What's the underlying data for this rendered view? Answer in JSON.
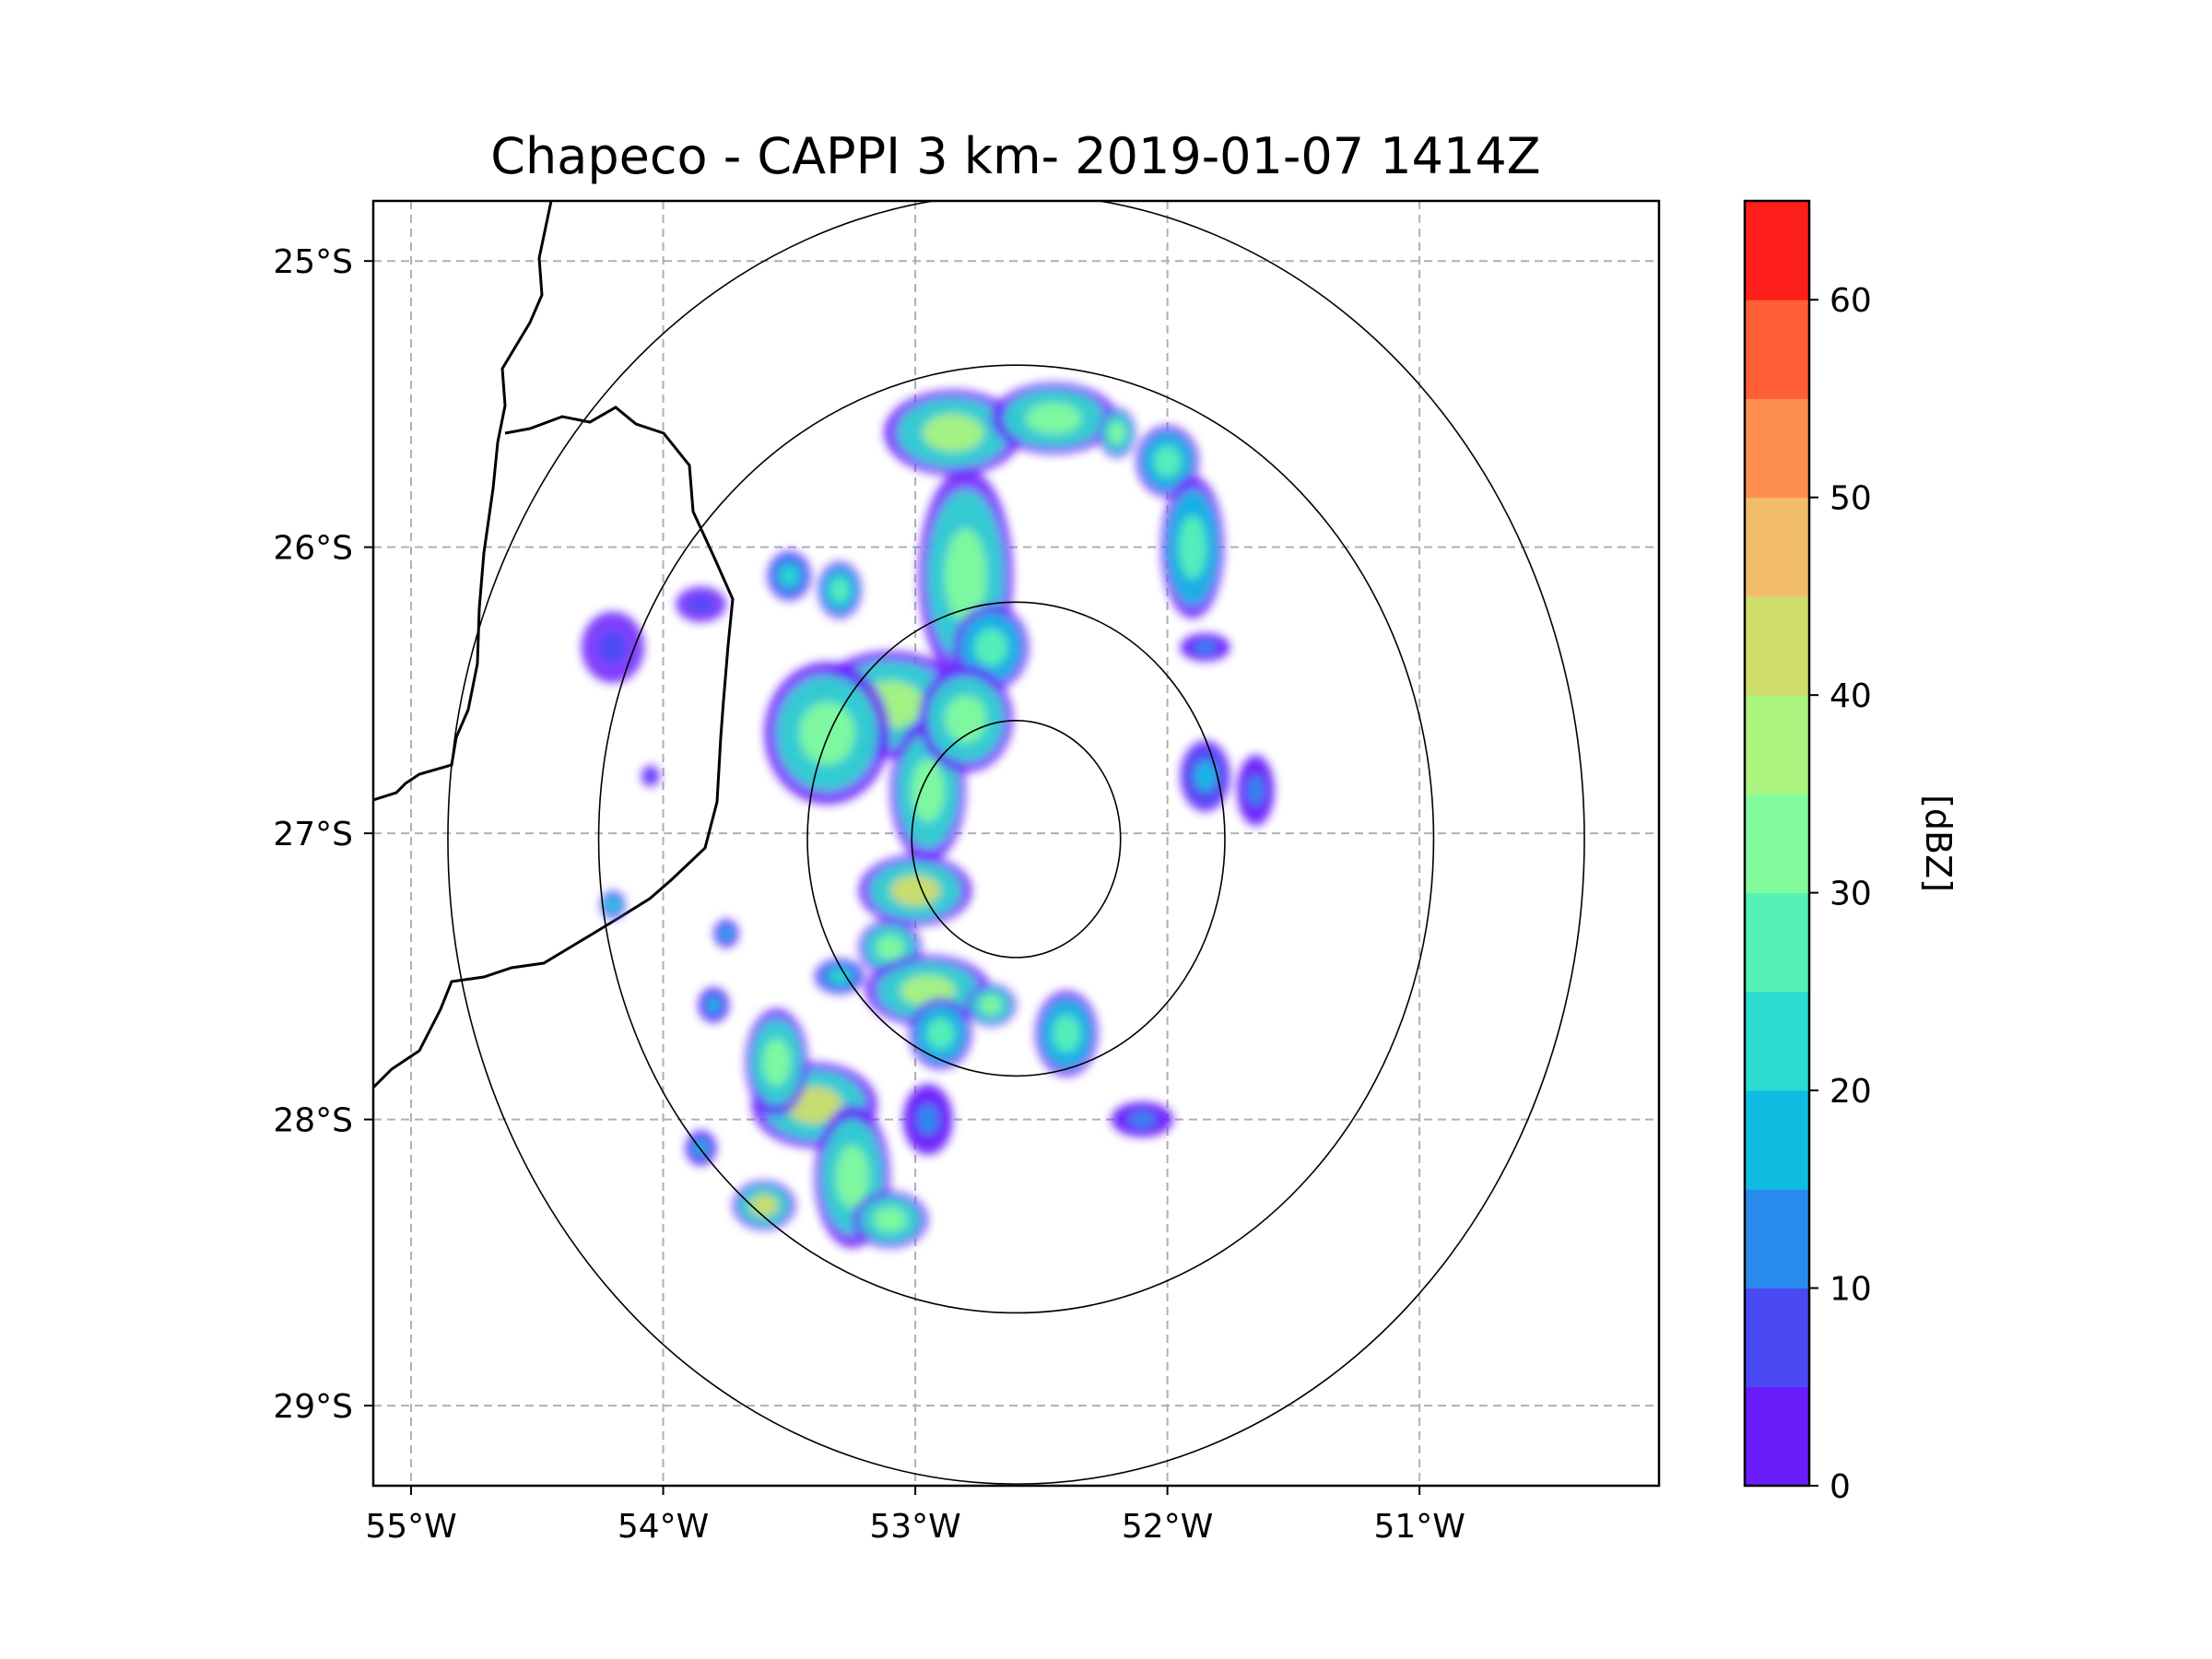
{
  "chart_data": {
    "type": "heatmap",
    "title": "Chapeco - CAPPI 3 km- 2019-01-07 1414Z",
    "xlim": [
      -55.15,
      -50.05
    ],
    "ylim": [
      -29.28,
      -24.79
    ],
    "x_ticks": [
      -55,
      -54,
      -53,
      -52,
      -51
    ],
    "x_tick_labels": [
      "55°W",
      "54°W",
      "53°W",
      "52°W",
      "51°W"
    ],
    "y_ticks": [
      -25,
      -26,
      -27,
      -28,
      -29
    ],
    "y_tick_labels": [
      "25°S",
      "26°S",
      "27°S",
      "28°S",
      "29°S"
    ],
    "grid": true,
    "radar_center": {
      "lon": -52.6,
      "lat": -27.02
    },
    "range_rings_deg": [
      0.45,
      0.9,
      1.8,
      2.45
    ],
    "colorbar": {
      "label": "[dBZ]",
      "min": 0,
      "max": 65,
      "ticks": [
        0,
        10,
        20,
        30,
        40,
        50,
        60
      ],
      "tick_labels": [
        "0",
        "10",
        "20",
        "30",
        "40",
        "50",
        "60"
      ],
      "levels": [
        0,
        5,
        10,
        15,
        20,
        25,
        30,
        35,
        40,
        45,
        50,
        55,
        60,
        65
      ],
      "colors": [
        "#6a1cfb",
        "#4a4af4",
        "#2a8bee",
        "#0fbde3",
        "#2cdbcf",
        "#54f2b7",
        "#82fb9d",
        "#aaf47f",
        "#cfde6a",
        "#f1bd6a",
        "#ff8f50",
        "#ff5e36",
        "#ff1f1a"
      ]
    },
    "echo_cells": [
      {
        "lon": -52.85,
        "lat": -25.6,
        "rx": 0.22,
        "ry": 0.12,
        "dbz": 35
      },
      {
        "lon": -52.45,
        "lat": -25.55,
        "rx": 0.2,
        "ry": 0.1,
        "dbz": 30
      },
      {
        "lon": -52.2,
        "lat": -25.6,
        "rx": 0.06,
        "ry": 0.07,
        "dbz": 30
      },
      {
        "lon": -52.0,
        "lat": -25.7,
        "rx": 0.1,
        "ry": 0.1,
        "dbz": 28
      },
      {
        "lon": -51.9,
        "lat": -26.0,
        "rx": 0.1,
        "ry": 0.2,
        "dbz": 25
      },
      {
        "lon": -52.8,
        "lat": -26.1,
        "rx": 0.15,
        "ry": 0.3,
        "dbz": 30
      },
      {
        "lon": -52.7,
        "lat": -26.35,
        "rx": 0.12,
        "ry": 0.12,
        "dbz": 25
      },
      {
        "lon": -53.1,
        "lat": -26.55,
        "rx": 0.25,
        "ry": 0.15,
        "dbz": 35
      },
      {
        "lon": -53.35,
        "lat": -26.65,
        "rx": 0.2,
        "ry": 0.2,
        "dbz": 33
      },
      {
        "lon": -52.95,
        "lat": -26.85,
        "rx": 0.12,
        "ry": 0.2,
        "dbz": 30
      },
      {
        "lon": -52.8,
        "lat": -26.6,
        "rx": 0.15,
        "ry": 0.15,
        "dbz": 30
      },
      {
        "lon": -53.3,
        "lat": -26.15,
        "rx": 0.07,
        "ry": 0.08,
        "dbz": 25
      },
      {
        "lon": -53.5,
        "lat": -26.1,
        "rx": 0.07,
        "ry": 0.07,
        "dbz": 20
      },
      {
        "lon": -54.2,
        "lat": -26.35,
        "rx": 0.1,
        "ry": 0.1,
        "dbz": 8
      },
      {
        "lon": -53.85,
        "lat": -26.2,
        "rx": 0.08,
        "ry": 0.05,
        "dbz": 8
      },
      {
        "lon": -53.0,
        "lat": -27.2,
        "rx": 0.18,
        "ry": 0.1,
        "dbz": 40
      },
      {
        "lon": -53.1,
        "lat": -27.4,
        "rx": 0.1,
        "ry": 0.08,
        "dbz": 30
      },
      {
        "lon": -52.95,
        "lat": -27.55,
        "rx": 0.2,
        "ry": 0.1,
        "dbz": 35
      },
      {
        "lon": -52.7,
        "lat": -27.6,
        "rx": 0.08,
        "ry": 0.06,
        "dbz": 30
      },
      {
        "lon": -52.9,
        "lat": -27.7,
        "rx": 0.1,
        "ry": 0.1,
        "dbz": 25
      },
      {
        "lon": -52.4,
        "lat": -27.7,
        "rx": 0.1,
        "ry": 0.12,
        "dbz": 28
      },
      {
        "lon": -53.3,
        "lat": -27.5,
        "rx": 0.08,
        "ry": 0.05,
        "dbz": 20
      },
      {
        "lon": -53.4,
        "lat": -27.95,
        "rx": 0.2,
        "ry": 0.12,
        "dbz": 40
      },
      {
        "lon": -53.55,
        "lat": -27.8,
        "rx": 0.1,
        "ry": 0.15,
        "dbz": 30
      },
      {
        "lon": -53.25,
        "lat": -28.2,
        "rx": 0.12,
        "ry": 0.2,
        "dbz": 33
      },
      {
        "lon": -53.1,
        "lat": -28.35,
        "rx": 0.12,
        "ry": 0.08,
        "dbz": 30
      },
      {
        "lon": -53.6,
        "lat": -28.3,
        "rx": 0.1,
        "ry": 0.07,
        "dbz": 40
      },
      {
        "lon": -53.85,
        "lat": -28.1,
        "rx": 0.05,
        "ry": 0.05,
        "dbz": 15
      },
      {
        "lon": -52.95,
        "lat": -28.0,
        "rx": 0.08,
        "ry": 0.1,
        "dbz": 10
      },
      {
        "lon": -52.1,
        "lat": -28.0,
        "rx": 0.1,
        "ry": 0.05,
        "dbz": 10
      },
      {
        "lon": -51.85,
        "lat": -26.8,
        "rx": 0.08,
        "ry": 0.1,
        "dbz": 15
      },
      {
        "lon": -51.65,
        "lat": -26.85,
        "rx": 0.06,
        "ry": 0.1,
        "dbz": 12
      },
      {
        "lon": -51.85,
        "lat": -26.35,
        "rx": 0.08,
        "ry": 0.04,
        "dbz": 12
      },
      {
        "lon": -54.2,
        "lat": -27.25,
        "rx": 0.04,
        "ry": 0.04,
        "dbz": 20
      },
      {
        "lon": -54.05,
        "lat": -26.8,
        "rx": 0.03,
        "ry": 0.03,
        "dbz": 8
      },
      {
        "lon": -53.75,
        "lat": -27.35,
        "rx": 0.04,
        "ry": 0.04,
        "dbz": 15
      },
      {
        "lon": -53.8,
        "lat": -27.6,
        "rx": 0.05,
        "ry": 0.05,
        "dbz": 15
      }
    ]
  }
}
